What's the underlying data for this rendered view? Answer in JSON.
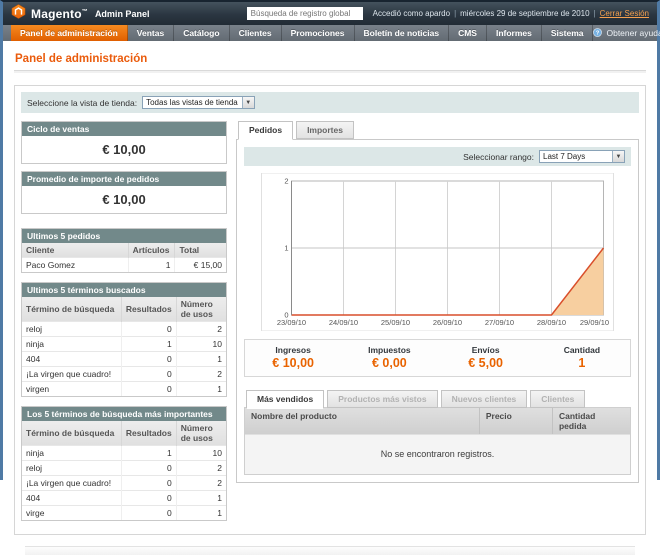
{
  "header": {
    "brand": "Magento",
    "brand_mark": "™",
    "brand_suffix": "Admin Panel",
    "search_placeholder": "Búsqueda de registro global",
    "logged_in_as": "Accedió como apardo",
    "separator": "|",
    "date": "miércoles 29 de septiembre de 2010",
    "logout_label": "Cerrar Sesión"
  },
  "nav": {
    "items": [
      {
        "label": "Panel de administración",
        "active": true
      },
      {
        "label": "Ventas",
        "active": false
      },
      {
        "label": "Catálogo",
        "active": false
      },
      {
        "label": "Clientes",
        "active": false
      },
      {
        "label": "Promociones",
        "active": false
      },
      {
        "label": "Boletín de noticias",
        "active": false
      },
      {
        "label": "CMS",
        "active": false
      },
      {
        "label": "Informes",
        "active": false
      },
      {
        "label": "Sistema",
        "active": false
      }
    ],
    "help_label": "Obtener ayuda para esta página"
  },
  "page": {
    "title": "Panel de administración",
    "store_switcher": {
      "label": "Seleccione la vista de tienda:",
      "value": "Todas las vistas de tienda"
    }
  },
  "sidebar": {
    "lifetime_sales": {
      "title": "Ciclo de ventas",
      "value": "€ 10,00"
    },
    "average_orders": {
      "title": "Promedio de importe de pedidos",
      "value": "€ 10,00"
    },
    "last_orders": {
      "title": "Ultimos 5 pedidos",
      "headers": [
        "Cliente",
        "Artículos",
        "Total"
      ],
      "rows": [
        [
          "Paco Gomez",
          "1",
          "€ 15,00"
        ]
      ]
    },
    "last_search_terms": {
      "title": "Ultimos 5 términos buscados",
      "headers": [
        "Término de búsqueda",
        "Resultados",
        "Número de usos"
      ],
      "rows": [
        [
          "reloj",
          "0",
          "2"
        ],
        [
          "ninja",
          "1",
          "10"
        ],
        [
          "404",
          "0",
          "1"
        ],
        [
          "¡La virgen que cuadro!",
          "0",
          "2"
        ],
        [
          "virgen",
          "0",
          "1"
        ]
      ]
    },
    "top_search_terms": {
      "title": "Los 5 términos de búsqueda más importantes",
      "headers": [
        "Término de búsqueda",
        "Resultados",
        "Número de usos"
      ],
      "rows": [
        [
          "ninja",
          "1",
          "10"
        ],
        [
          "reloj",
          "0",
          "2"
        ],
        [
          "¡La virgen que cuadro!",
          "0",
          "2"
        ],
        [
          "404",
          "0",
          "1"
        ],
        [
          "virge",
          "0",
          "1"
        ]
      ]
    }
  },
  "dashboard": {
    "tabs": [
      {
        "label": "Pedidos",
        "active": true
      },
      {
        "label": "Importes",
        "active": false
      }
    ],
    "range": {
      "label": "Seleccionar rango:",
      "value": "Last 7 Days"
    },
    "totals": [
      {
        "label": "Ingresos",
        "value": "€ 10,00"
      },
      {
        "label": "Impuestos",
        "value": "€ 0,00"
      },
      {
        "label": "Envíos",
        "value": "€ 5,00"
      },
      {
        "label": "Cantidad",
        "value": "1"
      }
    ],
    "bottom_tabs": [
      {
        "label": "Más vendidos",
        "active": true
      },
      {
        "label": "Productos más vistos",
        "active": false
      },
      {
        "label": "Nuevos clientes",
        "active": false
      },
      {
        "label": "Clientes",
        "active": false
      }
    ],
    "grid": {
      "headers": [
        "Nombre del producto",
        "Precio",
        "Cantidad pedida"
      ],
      "empty_text": "No se encontraron registros."
    }
  },
  "chart_data": {
    "type": "area",
    "x": [
      "23/09/10",
      "24/09/10",
      "25/09/10",
      "26/09/10",
      "27/09/10",
      "28/09/10",
      "29/09/10"
    ],
    "series": [
      {
        "name": "Pedidos",
        "values": [
          0,
          0,
          0,
          0,
          0,
          0,
          1
        ]
      }
    ],
    "ylim": [
      0,
      2
    ],
    "yticks": [
      0,
      1,
      2
    ],
    "grid": true,
    "legend": "none",
    "line_color": "#d94f2b",
    "fill_color": "#f7cfa0"
  },
  "icons": {
    "dropdown_arrow": "▼",
    "help_glyph": "?"
  },
  "colors": {
    "accent_orange": "#e96300",
    "nav_active": "#e9711f",
    "box_header": "#72898a",
    "teal_bar": "#dce7e7",
    "frame_blue": "#4f7aa5",
    "header_dark": "#2b3641"
  }
}
